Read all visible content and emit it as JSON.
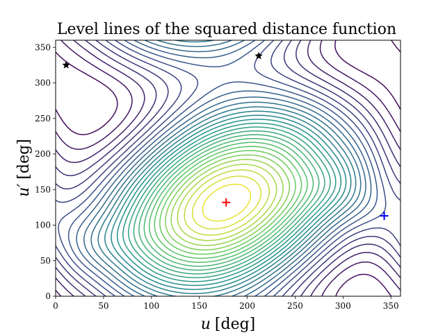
{
  "chart_data": {
    "type": "contour",
    "title": "Level lines of the squared distance function",
    "xlabel_var": "u",
    "xlabel_unit": "[deg]",
    "ylabel_var": "u′",
    "ylabel_unit": "[deg]",
    "xlim": [
      0,
      360
    ],
    "ylim": [
      0,
      360
    ],
    "xticks": [
      0,
      50,
      100,
      150,
      200,
      250,
      300,
      350
    ],
    "yticks": [
      0,
      50,
      100,
      150,
      200,
      250,
      300,
      350
    ],
    "colormap": [
      "#440154",
      "#3b528b",
      "#21918c",
      "#5ec962",
      "#fde725"
    ],
    "grid": false,
    "markers": [
      {
        "type": "plus",
        "x": 178,
        "y": 132,
        "color": "#ff0000"
      },
      {
        "type": "plus",
        "x": 343,
        "y": 113,
        "color": "#0000ff"
      },
      {
        "type": "star",
        "x": 11,
        "y": 325,
        "color": "#000000"
      },
      {
        "type": "star",
        "x": 212,
        "y": 338,
        "color": "#000000"
      }
    ]
  }
}
